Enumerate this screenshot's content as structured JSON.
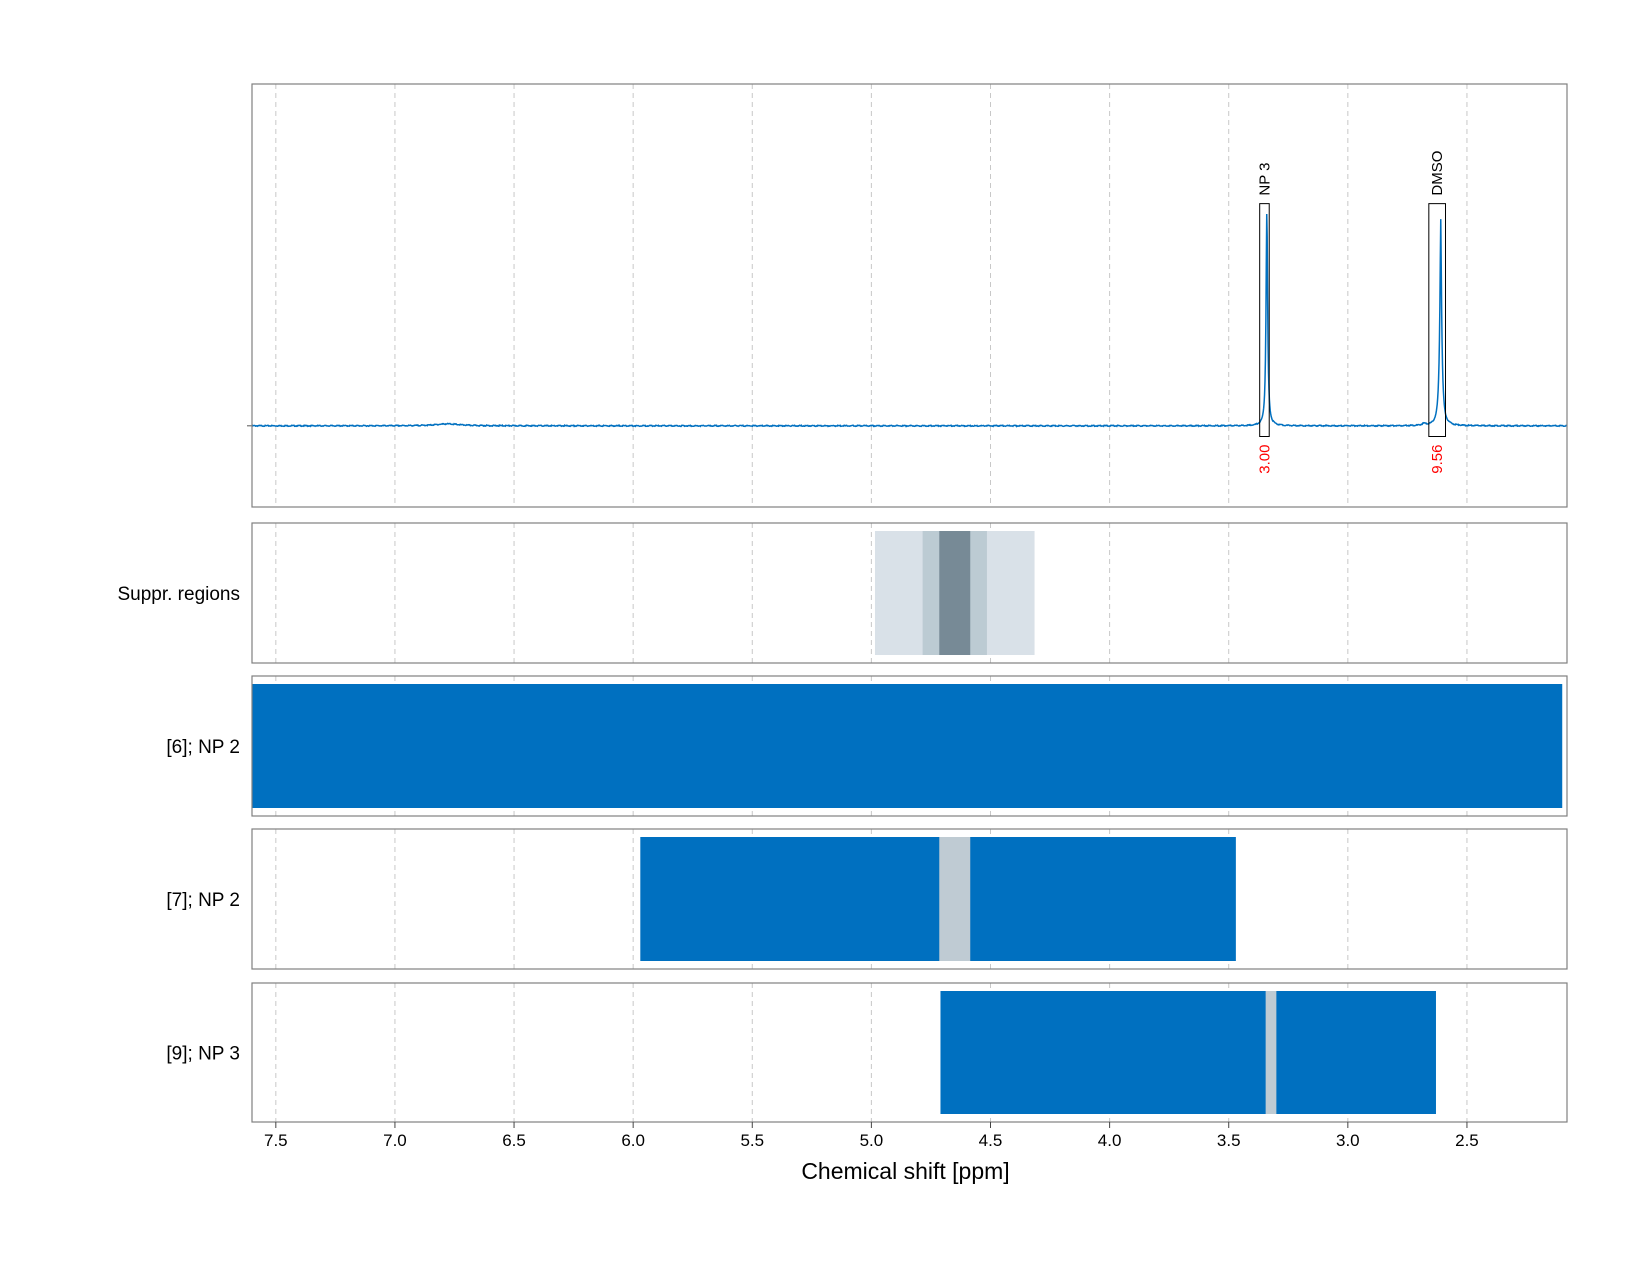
{
  "chart_data": {
    "type": "line",
    "xlabel": "Chemical shift [ppm]",
    "x_reversed": true,
    "xlim": [
      7.6,
      2.08
    ],
    "x_ticks": [
      7.5,
      7.0,
      6.5,
      6.0,
      5.5,
      5.0,
      4.5,
      4.0,
      3.5,
      3.0,
      2.5
    ],
    "x_tick_labels": [
      "7.5",
      "7.0",
      "6.5",
      "6.0",
      "5.5",
      "5.0",
      "4.5",
      "4.0",
      "3.5",
      "3.0",
      "2.5"
    ],
    "grid": true,
    "colors": {
      "spectrum": "#0070c0",
      "bar": "#0070c0",
      "integral_text": "#ff0000",
      "frame": "#808080",
      "grid": "#c8c8c8",
      "suppr_light": "#d9e1e8",
      "suppr_mid": "#bccbd3",
      "suppr_dark": "#778a96",
      "gap": "#bfcbd3"
    },
    "spectrum": {
      "baseline": 0,
      "ylim": [
        -0.38,
        1.6
      ],
      "peaks": [
        {
          "center": 3.34,
          "height": 1.0,
          "width": 0.004
        },
        {
          "center": 2.61,
          "height": 0.67,
          "width": 0.006
        },
        {
          "center": 2.61,
          "height": 0.3,
          "width": 0.002
        },
        {
          "center": 6.78,
          "height": 0.009,
          "width": 0.06
        },
        {
          "center": 2.68,
          "height": 0.008,
          "width": 0.01
        }
      ]
    },
    "annotations": [
      {
        "label": "NP 3",
        "integral": "3.00",
        "x_from": 3.37,
        "x_to": 3.33,
        "box_top": 1.04
      },
      {
        "label": "DMSO",
        "integral": "9.56",
        "x_from": 2.66,
        "x_to": 2.59,
        "box_top": 1.04
      }
    ],
    "tracks": [
      {
        "label": "Suppr. regions",
        "regions": [
          {
            "x_from": 4.985,
            "x_to": 4.315,
            "level": "light"
          },
          {
            "x_from": 4.785,
            "x_to": 4.515,
            "level": "mid"
          },
          {
            "x_from": 4.715,
            "x_to": 4.585,
            "level": "dark"
          }
        ]
      },
      {
        "label": "[6]; NP 2",
        "bars": [
          {
            "x_from": 7.6,
            "x_to": 2.1
          }
        ],
        "gaps": []
      },
      {
        "label": "[7]; NP 2",
        "bars": [
          {
            "x_from": 5.97,
            "x_to": 3.47
          }
        ],
        "gaps": [
          {
            "x_from": 4.715,
            "x_to": 4.585
          }
        ]
      },
      {
        "label": "[9]; NP 3",
        "bars": [
          {
            "x_from": 4.71,
            "x_to": 2.63
          }
        ],
        "gaps": [
          {
            "x_from": 3.345,
            "x_to": 3.3
          }
        ]
      }
    ]
  }
}
